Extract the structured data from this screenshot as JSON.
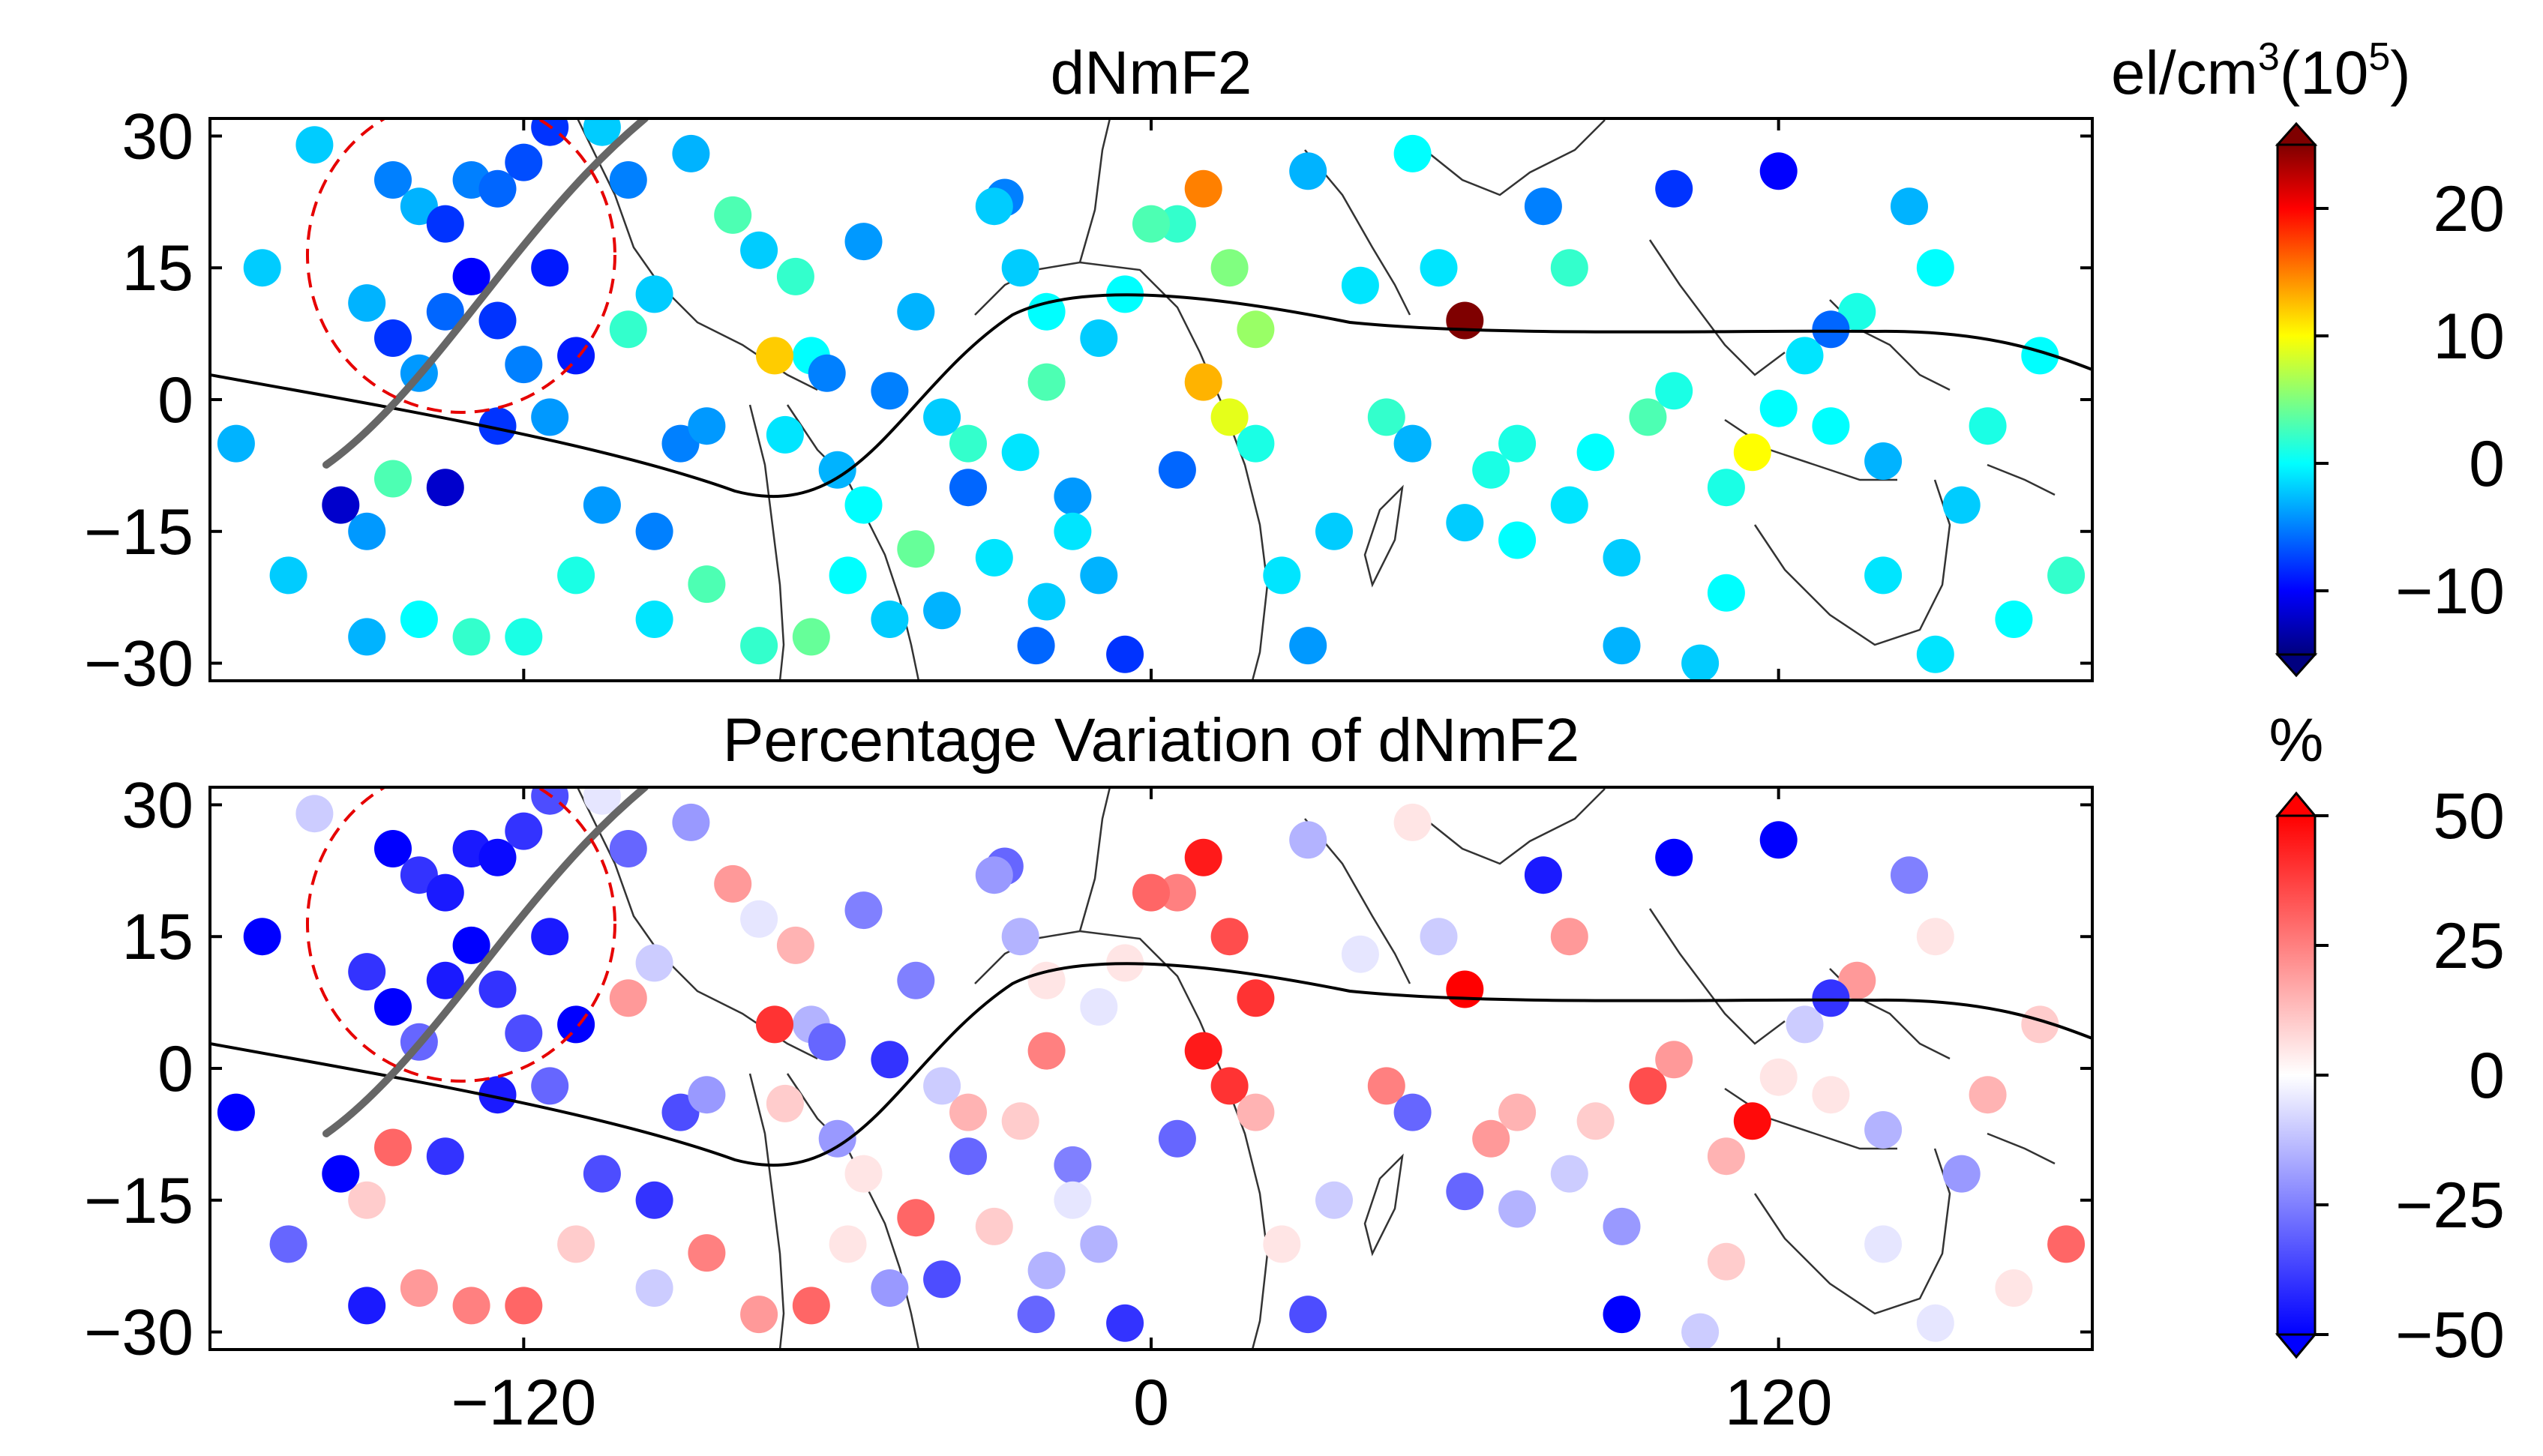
{
  "chart_data": [
    {
      "type": "scatter",
      "title": "dNmF2",
      "xlabel": "",
      "ylabel": "",
      "xlim": [
        -180,
        180
      ],
      "ylim": [
        -32,
        32
      ],
      "x_ticks": [
        -120,
        0,
        120
      ],
      "x_tick_labels": [
        "−120",
        "0",
        "120"
      ],
      "y_ticks": [
        30,
        15,
        0,
        -15,
        -30
      ],
      "y_tick_labels": [
        "30",
        "15",
        "0",
        "−15",
        "−30"
      ],
      "colorbar": {
        "label_text": "el/cm",
        "label_sup1": "3",
        "label_mid": "(10",
        "label_sup2": "5",
        "label_end": ")",
        "range": [
          -15,
          25
        ],
        "ticks": [
          20,
          10,
          0,
          -10
        ],
        "tick_labels": [
          "20",
          "10",
          "0",
          "−10"
        ],
        "colormap": "jet"
      },
      "annotations": [
        "dashed red circle around the eastern Pacific region",
        "thick grey line marking a track across the Pacific",
        "black curve marking the magnetic equator"
      ],
      "points": [
        [
          -160,
          29,
          -2
        ],
        [
          -145,
          25,
          -5
        ],
        [
          -140,
          22,
          -3
        ],
        [
          -135,
          20,
          -8
        ],
        [
          -130,
          25,
          -5
        ],
        [
          -125,
          24,
          -6
        ],
        [
          -120,
          27,
          -7
        ],
        [
          -115,
          31,
          -8
        ],
        [
          -105,
          31,
          -2
        ],
        [
          -100,
          25,
          -5
        ],
        [
          -150,
          11,
          -3
        ],
        [
          -145,
          7,
          -8
        ],
        [
          -140,
          3,
          -4
        ],
        [
          -135,
          10,
          -6
        ],
        [
          -130,
          14,
          -10
        ],
        [
          -125,
          9,
          -8
        ],
        [
          -120,
          4,
          -5
        ],
        [
          -115,
          -2,
          -4
        ],
        [
          -110,
          5,
          -9
        ],
        [
          -170,
          15,
          -2
        ],
        [
          -175,
          -5,
          -3
        ],
        [
          -165,
          -20,
          -2
        ],
        [
          -150,
          -15,
          -4
        ],
        [
          -140,
          -25,
          0
        ],
        [
          -130,
          -27,
          2
        ],
        [
          -120,
          -27,
          1
        ],
        [
          -135,
          -10,
          -12
        ],
        [
          -145,
          -9,
          3
        ],
        [
          -150,
          -27,
          -3
        ],
        [
          -155,
          -12,
          -12
        ],
        [
          -100,
          8,
          2
        ],
        [
          -95,
          12,
          -2
        ],
        [
          -90,
          -5,
          -5
        ],
        [
          -85,
          -3,
          -4
        ],
        [
          -80,
          21,
          3
        ],
        [
          -75,
          17,
          -2
        ],
        [
          -70,
          -4,
          -1
        ],
        [
          -65,
          5,
          0
        ],
        [
          -60,
          -8,
          -3
        ],
        [
          -55,
          18,
          -4
        ],
        [
          -50,
          1,
          -5
        ],
        [
          -45,
          -17,
          4
        ],
        [
          -40,
          -24,
          -3
        ],
        [
          -35,
          -5,
          2
        ],
        [
          -30,
          -18,
          -1
        ],
        [
          -25,
          -6,
          -1
        ],
        [
          -20,
          10,
          0
        ],
        [
          -15,
          -11,
          -4
        ],
        [
          -10,
          -20,
          -3
        ],
        [
          -5,
          -29,
          -8
        ],
        [
          -95,
          -15,
          -5
        ],
        [
          -85,
          -21,
          3
        ],
        [
          -75,
          -28,
          2
        ],
        [
          -65,
          -27,
          4
        ],
        [
          -58,
          -20,
          0
        ],
        [
          -50,
          -25,
          -2
        ],
        [
          -40,
          -2,
          -2
        ],
        [
          -35,
          -10,
          -6
        ],
        [
          -28,
          23,
          -5
        ],
        [
          -22,
          -28,
          -6
        ],
        [
          5,
          20,
          2
        ],
        [
          10,
          2,
          13
        ],
        [
          15,
          -2,
          9
        ],
        [
          20,
          -5,
          1
        ],
        [
          25,
          -20,
          -1
        ],
        [
          30,
          26,
          -3
        ],
        [
          35,
          -15,
          -2
        ],
        [
          40,
          13,
          -1
        ],
        [
          45,
          -2,
          2
        ],
        [
          50,
          28,
          0
        ],
        [
          60,
          9,
          25
        ],
        [
          65,
          -8,
          1
        ],
        [
          70,
          -5,
          1
        ],
        [
          75,
          22,
          -5
        ],
        [
          80,
          15,
          2
        ],
        [
          85,
          -6,
          0
        ],
        [
          90,
          -18,
          -2
        ],
        [
          95,
          -2,
          3
        ],
        [
          100,
          24,
          -8
        ],
        [
          105,
          -30,
          -2
        ],
        [
          110,
          -10,
          1
        ],
        [
          115,
          -6,
          10
        ],
        [
          120,
          26,
          -10
        ],
        [
          125,
          5,
          -1
        ],
        [
          130,
          -3,
          0
        ],
        [
          135,
          10,
          1
        ],
        [
          140,
          -20,
          -1
        ],
        [
          145,
          22,
          -3
        ],
        [
          150,
          15,
          0
        ],
        [
          155,
          -12,
          -2
        ],
        [
          160,
          -3,
          1
        ],
        [
          165,
          -25,
          0
        ],
        [
          170,
          5,
          0
        ],
        [
          175,
          -20,
          2
        ],
        [
          -5,
          12,
          0
        ],
        [
          0,
          20,
          3
        ],
        [
          5,
          -8,
          -6
        ],
        [
          10,
          24,
          15
        ],
        [
          15,
          15,
          5
        ],
        [
          20,
          8,
          6
        ],
        [
          -10,
          7,
          -2
        ],
        [
          -15,
          -15,
          -1
        ],
        [
          -20,
          2,
          3
        ],
        [
          -25,
          15,
          -2
        ],
        [
          -30,
          22,
          -2
        ],
        [
          -45,
          10,
          -3
        ],
        [
          -55,
          -12,
          0
        ],
        [
          -62,
          3,
          -5
        ],
        [
          -68,
          14,
          2
        ],
        [
          -72,
          5,
          12
        ],
        [
          60,
          -14,
          -2
        ],
        [
          70,
          -16,
          0
        ],
        [
          80,
          -12,
          -1
        ],
        [
          90,
          -28,
          -3
        ],
        [
          100,
          1,
          1
        ],
        [
          110,
          -22,
          0
        ],
        [
          120,
          -1,
          0
        ],
        [
          130,
          8,
          -6
        ],
        [
          140,
          -7,
          -3
        ],
        [
          150,
          -29,
          -1
        ],
        [
          -105,
          -12,
          -4
        ],
        [
          -95,
          -25,
          -1
        ],
        [
          -110,
          -20,
          1
        ],
        [
          -88,
          28,
          -3
        ],
        [
          -20,
          -23,
          -2
        ],
        [
          30,
          -28,
          -4
        ],
        [
          50,
          -5,
          -3
        ],
        [
          55,
          15,
          -1
        ],
        [
          -115,
          15,
          -9
        ],
        [
          -125,
          -3,
          -8
        ]
      ]
    },
    {
      "type": "scatter",
      "title": "Percentage Variation of dNmF2",
      "xlabel": "",
      "ylabel": "",
      "xlim": [
        -180,
        180
      ],
      "ylim": [
        -32,
        32
      ],
      "x_ticks": [
        -120,
        0,
        120
      ],
      "x_tick_labels": [
        "−120",
        "0",
        "120"
      ],
      "y_ticks": [
        30,
        15,
        0,
        -15,
        -30
      ],
      "y_tick_labels": [
        "30",
        "15",
        "0",
        "−15",
        "−30"
      ],
      "colorbar": {
        "label_text": "%",
        "range": [
          -50,
          50
        ],
        "ticks": [
          50,
          25,
          0,
          -25,
          -50
        ],
        "tick_labels": [
          "50",
          "25",
          "0",
          "−25",
          "−50"
        ],
        "colormap": "bwr"
      },
      "annotations": [
        "dashed red circle around the eastern Pacific region",
        "thick grey line marking a track across the Pacific",
        "black curve marking the magnetic equator"
      ],
      "points": [
        [
          -160,
          29,
          -10
        ],
        [
          -145,
          25,
          -50
        ],
        [
          -140,
          22,
          -40
        ],
        [
          -135,
          20,
          -45
        ],
        [
          -130,
          25,
          -45
        ],
        [
          -125,
          24,
          -48
        ],
        [
          -120,
          27,
          -40
        ],
        [
          -115,
          31,
          -35
        ],
        [
          -105,
          31,
          -5
        ],
        [
          -100,
          25,
          -30
        ],
        [
          -150,
          11,
          -40
        ],
        [
          -145,
          7,
          -50
        ],
        [
          -140,
          3,
          -30
        ],
        [
          -135,
          10,
          -45
        ],
        [
          -130,
          14,
          -50
        ],
        [
          -125,
          9,
          -40
        ],
        [
          -120,
          4,
          -35
        ],
        [
          -115,
          -2,
          -30
        ],
        [
          -110,
          5,
          -50
        ],
        [
          -170,
          15,
          -50
        ],
        [
          -175,
          -5,
          -50
        ],
        [
          -165,
          -20,
          -30
        ],
        [
          -150,
          -15,
          10
        ],
        [
          -140,
          -25,
          20
        ],
        [
          -130,
          -27,
          25
        ],
        [
          -120,
          -27,
          30
        ],
        [
          -135,
          -10,
          -40
        ],
        [
          -145,
          -9,
          30
        ],
        [
          -150,
          -27,
          -45
        ],
        [
          -155,
          -12,
          -50
        ],
        [
          -100,
          8,
          20
        ],
        [
          -95,
          12,
          -10
        ],
        [
          -90,
          -5,
          -35
        ],
        [
          -85,
          -3,
          -20
        ],
        [
          -80,
          21,
          20
        ],
        [
          -75,
          17,
          -5
        ],
        [
          -70,
          -4,
          10
        ],
        [
          -65,
          5,
          -15
        ],
        [
          -60,
          -8,
          -20
        ],
        [
          -55,
          18,
          -25
        ],
        [
          -50,
          1,
          -40
        ],
        [
          -45,
          -17,
          30
        ],
        [
          -40,
          -24,
          -35
        ],
        [
          -35,
          -5,
          15
        ],
        [
          -30,
          -18,
          10
        ],
        [
          -25,
          -6,
          10
        ],
        [
          -20,
          10,
          5
        ],
        [
          -15,
          -11,
          -25
        ],
        [
          -10,
          -20,
          -15
        ],
        [
          -5,
          -29,
          -40
        ],
        [
          -95,
          -15,
          -40
        ],
        [
          -85,
          -21,
          25
        ],
        [
          -75,
          -28,
          20
        ],
        [
          -65,
          -27,
          30
        ],
        [
          -58,
          -20,
          5
        ],
        [
          -50,
          -25,
          -20
        ],
        [
          -40,
          -2,
          -10
        ],
        [
          -35,
          -10,
          -30
        ],
        [
          -28,
          23,
          -30
        ],
        [
          -22,
          -28,
          -30
        ],
        [
          5,
          20,
          25
        ],
        [
          10,
          2,
          45
        ],
        [
          15,
          -2,
          40
        ],
        [
          20,
          -5,
          15
        ],
        [
          25,
          -20,
          5
        ],
        [
          30,
          26,
          -15
        ],
        [
          35,
          -15,
          -10
        ],
        [
          40,
          13,
          -5
        ],
        [
          45,
          -2,
          25
        ],
        [
          50,
          28,
          5
        ],
        [
          60,
          9,
          50
        ],
        [
          65,
          -8,
          20
        ],
        [
          70,
          -5,
          15
        ],
        [
          75,
          22,
          -45
        ],
        [
          80,
          15,
          20
        ],
        [
          85,
          -6,
          10
        ],
        [
          90,
          -18,
          -20
        ],
        [
          95,
          -2,
          35
        ],
        [
          100,
          24,
          -50
        ],
        [
          105,
          -30,
          -10
        ],
        [
          110,
          -10,
          15
        ],
        [
          115,
          -6,
          48
        ],
        [
          120,
          26,
          -50
        ],
        [
          125,
          5,
          -10
        ],
        [
          130,
          -3,
          5
        ],
        [
          135,
          10,
          20
        ],
        [
          140,
          -20,
          -5
        ],
        [
          145,
          22,
          -25
        ],
        [
          150,
          15,
          5
        ],
        [
          155,
          -12,
          -20
        ],
        [
          160,
          -3,
          15
        ],
        [
          165,
          -25,
          5
        ],
        [
          170,
          5,
          10
        ],
        [
          175,
          -20,
          30
        ],
        [
          -5,
          12,
          5
        ],
        [
          0,
          20,
          30
        ],
        [
          5,
          -8,
          -30
        ],
        [
          10,
          24,
          45
        ],
        [
          15,
          15,
          35
        ],
        [
          20,
          8,
          40
        ],
        [
          -10,
          7,
          -5
        ],
        [
          -15,
          -15,
          -5
        ],
        [
          -20,
          2,
          25
        ],
        [
          -25,
          15,
          -15
        ],
        [
          -30,
          22,
          -20
        ],
        [
          -45,
          10,
          -25
        ],
        [
          -55,
          -12,
          5
        ],
        [
          -62,
          3,
          -30
        ],
        [
          -68,
          14,
          15
        ],
        [
          -72,
          5,
          40
        ],
        [
          60,
          -14,
          -30
        ],
        [
          70,
          -16,
          -15
        ],
        [
          80,
          -12,
          -10
        ],
        [
          90,
          -28,
          -50
        ],
        [
          100,
          1,
          20
        ],
        [
          110,
          -22,
          10
        ],
        [
          120,
          -1,
          5
        ],
        [
          130,
          8,
          -40
        ],
        [
          140,
          -7,
          -15
        ],
        [
          150,
          -29,
          -5
        ],
        [
          -105,
          -12,
          -35
        ],
        [
          -95,
          -25,
          -10
        ],
        [
          -110,
          -20,
          10
        ],
        [
          -88,
          28,
          -20
        ],
        [
          -20,
          -23,
          -15
        ],
        [
          30,
          -28,
          -35
        ],
        [
          50,
          -5,
          -30
        ],
        [
          55,
          15,
          -10
        ],
        [
          -115,
          15,
          -45
        ],
        [
          -125,
          -3,
          -45
        ]
      ]
    }
  ]
}
